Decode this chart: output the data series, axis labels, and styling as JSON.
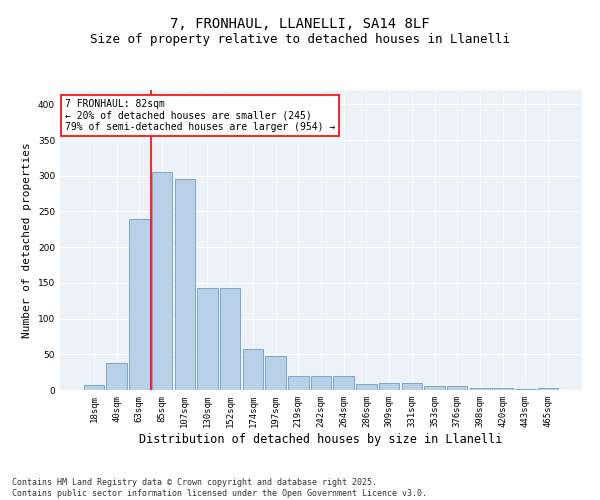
{
  "title1": "7, FRONHAUL, LLANELLI, SA14 8LF",
  "title2": "Size of property relative to detached houses in Llanelli",
  "xlabel": "Distribution of detached houses by size in Llanelli",
  "ylabel": "Number of detached properties",
  "categories": [
    "18sqm",
    "40sqm",
    "63sqm",
    "85sqm",
    "107sqm",
    "130sqm",
    "152sqm",
    "174sqm",
    "197sqm",
    "219sqm",
    "242sqm",
    "264sqm",
    "286sqm",
    "309sqm",
    "331sqm",
    "353sqm",
    "376sqm",
    "398sqm",
    "420sqm",
    "443sqm",
    "465sqm"
  ],
  "values": [
    7,
    38,
    240,
    305,
    295,
    143,
    143,
    57,
    47,
    19,
    20,
    20,
    9,
    10,
    10,
    6,
    5,
    3,
    3,
    1,
    3
  ],
  "bar_color": "#b8d0e8",
  "bar_edge_color": "#6a9fc0",
  "vline_x": 2.5,
  "vline_color": "red",
  "annotation_text": "7 FRONHAUL: 82sqm\n← 20% of detached houses are smaller (245)\n79% of semi-detached houses are larger (954) →",
  "annotation_box_color": "white",
  "annotation_box_edge": "red",
  "ylim": [
    0,
    420
  ],
  "yticks": [
    0,
    50,
    100,
    150,
    200,
    250,
    300,
    350,
    400
  ],
  "bg_color": "#edf1f8",
  "footer": "Contains HM Land Registry data © Crown copyright and database right 2025.\nContains public sector information licensed under the Open Government Licence v3.0.",
  "title_fontsize": 10,
  "subtitle_fontsize": 9,
  "ylabel_fontsize": 8,
  "xlabel_fontsize": 8.5,
  "tick_fontsize": 6.5,
  "annot_fontsize": 7,
  "footer_fontsize": 6
}
